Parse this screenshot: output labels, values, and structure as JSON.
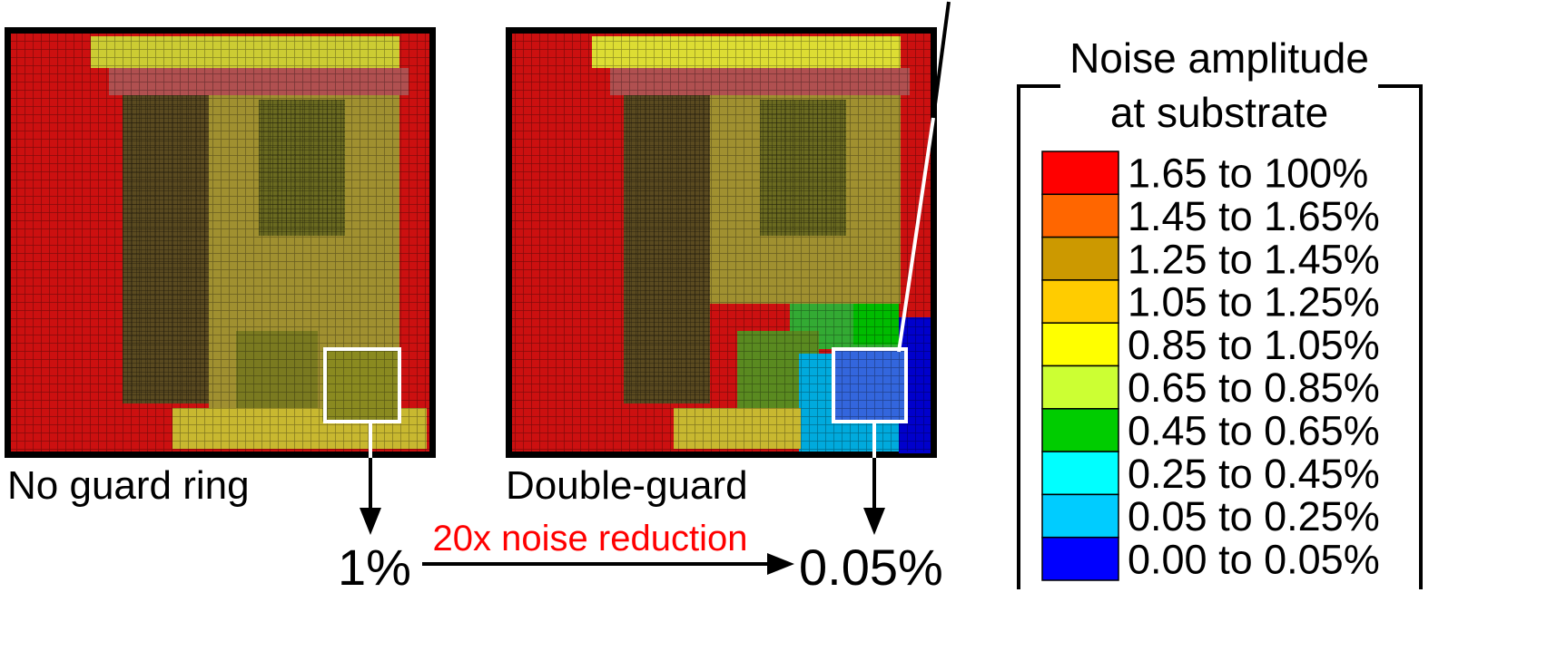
{
  "panels": [
    {
      "label": "No guard ring"
    },
    {
      "label": "Double-guard"
    }
  ],
  "comparison": {
    "before": "1%",
    "after": "0.05%",
    "arrow_label": "20x noise reduction"
  },
  "legend": {
    "title_lines": [
      "Noise amplitude",
      "at substrate"
    ],
    "entries": [
      {
        "label": "1.65 to 100%",
        "color": "#ff0000"
      },
      {
        "label": "1.45 to 1.65%",
        "color": "#ff6600"
      },
      {
        "label": "1.25 to 1.45%",
        "color": "#cc9900"
      },
      {
        "label": "1.05 to 1.25%",
        "color": "#ffcc00"
      },
      {
        "label": "0.85 to 1.05%",
        "color": "#ffff00"
      },
      {
        "label": "0.65 to 0.85%",
        "color": "#ccff33"
      },
      {
        "label": "0.45 to 0.65%",
        "color": "#00cc00"
      },
      {
        "label": "0.25 to 0.45%",
        "color": "#00ffff"
      },
      {
        "label": "0.05 to 0.25%",
        "color": "#00ccff"
      },
      {
        "label": "0.00 to 0.05%",
        "color": "#0000ff"
      }
    ]
  }
}
